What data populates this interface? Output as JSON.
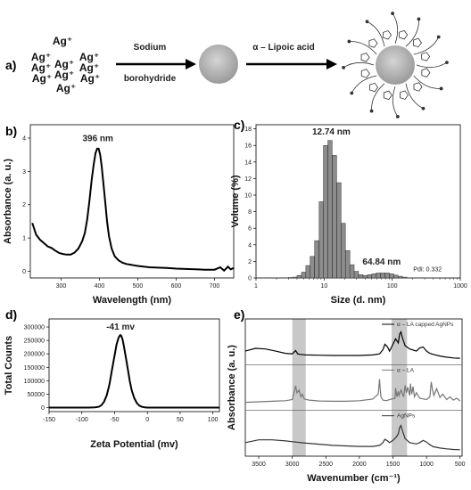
{
  "panels": {
    "a": {
      "label": "a)",
      "ions": [
        "Ag⁺",
        "Ag⁺",
        "Ag⁺",
        "Ag⁺",
        "Ag⁺",
        "Ag⁺",
        "Ag⁺",
        "Ag⁺",
        "Ag⁺",
        "Ag⁺"
      ],
      "step1_top": "Sodium",
      "step1_bottom": "borohydride",
      "step2_top": "α – Lipoic acid"
    },
    "b": {
      "label": "b)"
    },
    "c": {
      "label": "c)"
    },
    "d": {
      "label": "d)"
    },
    "e": {
      "label": "e)"
    }
  },
  "chart_data": [
    {
      "id": "b",
      "type": "line",
      "xlabel": "Wavelength (nm)",
      "ylabel": "Absorbance (a. u.)",
      "xlim": [
        220,
        750
      ],
      "ylim": [
        -0.2,
        4.4
      ],
      "xticks": [
        300,
        400,
        500,
        600,
        700
      ],
      "yticks": [
        0,
        1,
        2,
        3,
        4
      ],
      "annotations": [
        {
          "text": "396 nm",
          "x": 396,
          "y": 3.9
        }
      ],
      "series": [
        {
          "x": [
            225,
            235,
            245,
            255,
            265,
            275,
            285,
            295,
            305,
            315,
            325,
            335,
            345,
            355,
            362,
            368,
            374,
            380,
            385,
            390,
            394,
            398,
            402,
            406,
            410,
            415,
            420,
            425,
            432,
            440,
            450,
            460,
            470,
            480,
            490,
            500,
            515,
            530,
            550,
            575,
            600,
            625,
            650,
            675,
            700,
            715,
            725,
            735,
            742,
            750
          ],
          "y": [
            1.45,
            1.1,
            0.95,
            0.85,
            0.75,
            0.7,
            0.62,
            0.55,
            0.52,
            0.5,
            0.5,
            0.56,
            0.68,
            0.9,
            1.15,
            1.55,
            2.1,
            2.75,
            3.2,
            3.55,
            3.68,
            3.68,
            3.5,
            3.15,
            2.7,
            2.1,
            1.5,
            1.05,
            0.68,
            0.45,
            0.33,
            0.26,
            0.22,
            0.2,
            0.18,
            0.16,
            0.14,
            0.12,
            0.11,
            0.1,
            0.08,
            0.07,
            0.06,
            0.05,
            0.05,
            0.12,
            0.02,
            0.14,
            0.06,
            0.1
          ]
        }
      ]
    },
    {
      "id": "c",
      "type": "bar",
      "xlabel": "Size (d. nm)",
      "ylabel": "Volume (%)",
      "xscale": "log",
      "xlim": [
        1,
        1000
      ],
      "ylim": [
        0,
        18.5
      ],
      "xticks": [
        1,
        10,
        100,
        1000
      ],
      "yticks": [
        0,
        2,
        4,
        6,
        8,
        10,
        12,
        14,
        16,
        18
      ],
      "annotations": [
        {
          "text": "12.74 nm",
          "x": 12.74,
          "y": 17.3
        },
        {
          "text": "64.84 nm",
          "x": 70,
          "y": 1.6
        },
        {
          "text": "PdI: 0.332",
          "x": 330,
          "y": 0.8
        }
      ],
      "bars": {
        "x": [
          3.2,
          3.7,
          4.3,
          5.0,
          5.8,
          6.7,
          7.8,
          9.1,
          10.5,
          12.2,
          14.2,
          16.5,
          19.1,
          22.2,
          25.7,
          29.8,
          34.6,
          40.1,
          46.6,
          54.0,
          62.7,
          72.7,
          84.3,
          97.8,
          113.5,
          131.7,
          152.8
        ],
        "values": [
          0.05,
          0.1,
          0.3,
          0.7,
          1.5,
          2.6,
          4.5,
          9.2,
          16.0,
          16.6,
          14.8,
          11.5,
          6.6,
          3.3,
          1.6,
          0.8,
          0.4,
          0.3,
          0.4,
          0.5,
          0.6,
          0.6,
          0.6,
          0.5,
          0.35,
          0.2,
          0.1
        ]
      }
    },
    {
      "id": "d",
      "type": "line",
      "xlabel": "Zeta Potential (mv)",
      "ylabel": "Total Counts",
      "xlim": [
        -150,
        110
      ],
      "ylim": [
        -15000,
        330000
      ],
      "xticks": [
        -150,
        -100,
        -50,
        0,
        50,
        100
      ],
      "yticks": [
        0,
        50000,
        100000,
        150000,
        200000,
        250000,
        300000
      ],
      "annotations": [
        {
          "text": "-41 mv",
          "x": -41,
          "y": 290000
        }
      ],
      "series": [
        {
          "x": [
            -150,
            -110,
            -90,
            -80,
            -74,
            -70,
            -66,
            -62,
            -58,
            -54,
            -50,
            -47,
            -44,
            -42,
            -41,
            -40,
            -38,
            -36,
            -33,
            -30,
            -27,
            -24,
            -20,
            -16,
            -12,
            -8,
            -4,
            0,
            20,
            110
          ],
          "y": [
            0,
            0,
            0,
            500,
            3000,
            9000,
            22000,
            45000,
            85000,
            140000,
            195000,
            235000,
            260000,
            268000,
            270000,
            268000,
            255000,
            232000,
            190000,
            145000,
            100000,
            65000,
            35000,
            17000,
            7000,
            2500,
            800,
            0,
            0,
            0
          ]
        }
      ]
    },
    {
      "id": "e",
      "type": "line",
      "xlabel": "Wavenumber (cm⁻¹)",
      "ylabel": "Absorbance (a. u.)",
      "xlim": [
        3700,
        470
      ],
      "xticks": [
        3500,
        3000,
        2500,
        2000,
        1500,
        1000,
        500
      ],
      "highlight_bands": [
        [
          3000,
          2800
        ],
        [
          1520,
          1290
        ]
      ],
      "series": [
        {
          "name": "α – LA capped AgNPs",
          "x": [
            3700,
            3550,
            3400,
            3250,
            3100,
            3000,
            2950,
            2920,
            2880,
            2800,
            2600,
            2400,
            2200,
            2000,
            1800,
            1700,
            1650,
            1620,
            1580,
            1550,
            1500,
            1460,
            1420,
            1400,
            1380,
            1360,
            1320,
            1250,
            1150,
            1100,
            1050,
            1000,
            950,
            900,
            800,
            700,
            600,
            500
          ],
          "y": [
            0.3,
            0.4,
            0.38,
            0.3,
            0.22,
            0.2,
            0.32,
            0.2,
            0.18,
            0.16,
            0.15,
            0.14,
            0.14,
            0.14,
            0.16,
            0.2,
            0.35,
            0.55,
            0.45,
            0.3,
            0.55,
            0.75,
            0.6,
            0.92,
            1.0,
            0.8,
            0.5,
            0.38,
            0.3,
            0.42,
            0.45,
            0.3,
            0.22,
            0.18,
            0.12,
            0.08,
            0.05,
            0.04
          ]
        },
        {
          "name": "α – LA",
          "x": [
            3700,
            3500,
            3300,
            3100,
            3000,
            2950,
            2930,
            2900,
            2870,
            2850,
            2820,
            2750,
            2600,
            2400,
            2200,
            2000,
            1800,
            1720,
            1700,
            1690,
            1680,
            1650,
            1600,
            1550,
            1470,
            1460,
            1440,
            1420,
            1410,
            1380,
            1340,
            1320,
            1300,
            1280,
            1250,
            1240,
            1220,
            1200,
            1180,
            1150,
            1100,
            1000,
            950,
            930,
            910,
            890,
            850,
            800,
            760,
            700,
            650,
            600,
            550,
            500
          ],
          "y": [
            0.1,
            0.12,
            0.14,
            0.16,
            0.2,
            0.7,
            0.45,
            0.55,
            0.3,
            0.4,
            0.22,
            0.18,
            0.15,
            0.14,
            0.14,
            0.16,
            0.22,
            0.4,
            0.95,
            0.6,
            0.3,
            0.18,
            0.16,
            0.2,
            0.25,
            0.62,
            0.3,
            0.5,
            0.35,
            0.55,
            0.3,
            0.72,
            0.45,
            0.65,
            0.35,
            0.78,
            0.4,
            0.68,
            0.3,
            0.45,
            0.25,
            0.2,
            0.3,
            0.85,
            0.55,
            0.35,
            0.6,
            0.28,
            0.4,
            0.2,
            0.3,
            0.18,
            0.25,
            0.15
          ]
        },
        {
          "name": "AgNPs",
          "x": [
            3700,
            3500,
            3300,
            3100,
            2950,
            2800,
            2600,
            2400,
            2200,
            2000,
            1800,
            1700,
            1650,
            1620,
            1580,
            1550,
            1500,
            1450,
            1420,
            1400,
            1380,
            1360,
            1320,
            1250,
            1150,
            1100,
            1050,
            1000,
            950,
            900,
            800,
            700,
            600,
            500
          ],
          "y": [
            0.3,
            0.4,
            0.4,
            0.36,
            0.32,
            0.28,
            0.24,
            0.2,
            0.18,
            0.16,
            0.16,
            0.2,
            0.3,
            0.42,
            0.36,
            0.3,
            0.38,
            0.5,
            0.62,
            0.85,
            0.92,
            0.75,
            0.45,
            0.3,
            0.25,
            0.3,
            0.38,
            0.32,
            0.22,
            0.15,
            0.1,
            0.07,
            0.05,
            0.04
          ]
        }
      ]
    }
  ]
}
